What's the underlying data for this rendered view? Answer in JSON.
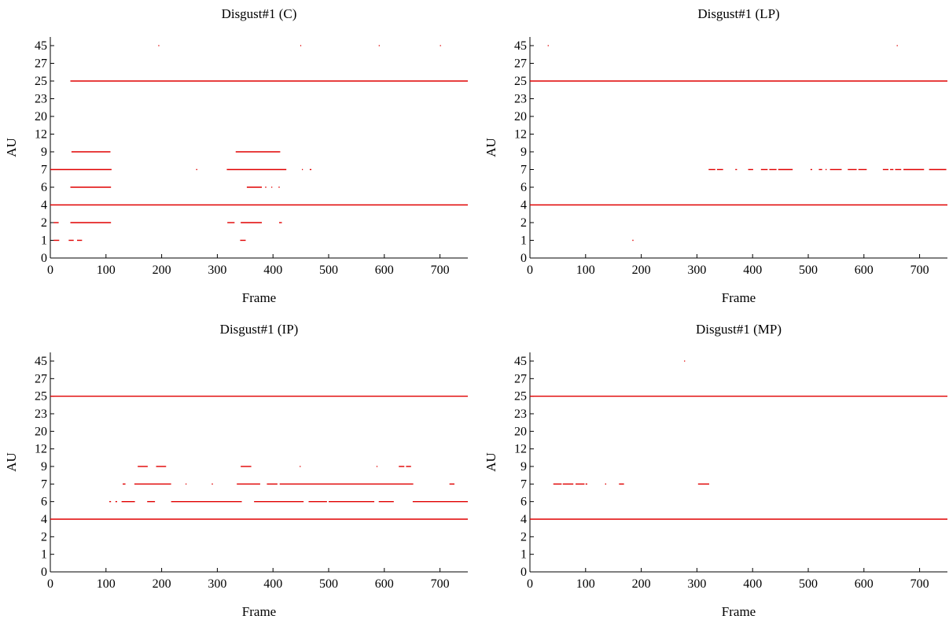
{
  "figure": {
    "color_segments": "#e00000",
    "color_axis": "#000000"
  },
  "chart_data": [
    {
      "type": "scatter",
      "title": "Disgust#1 (C)",
      "xlabel": "Frame",
      "ylabel": "AU",
      "xlim": [
        0,
        750
      ],
      "xticks": [
        0,
        100,
        200,
        300,
        400,
        500,
        600,
        700
      ],
      "au_categories": [
        "0",
        "1",
        "2",
        "4",
        "6",
        "7",
        "9",
        "12",
        "20",
        "23",
        "25",
        "27",
        "45"
      ],
      "segments": [
        {
          "au": "45",
          "x": [
            [
              194,
              195
            ],
            [
              449,
              450
            ],
            [
              590,
              591
            ],
            [
              700,
              701
            ]
          ]
        },
        {
          "au": "25",
          "x": [
            [
              36,
              750
            ]
          ]
        },
        {
          "au": "9",
          "x": [
            [
              38,
              108
            ],
            [
              333,
              413
            ]
          ]
        },
        {
          "au": "7",
          "x": [
            [
              0,
              110
            ],
            [
              262,
              264
            ],
            [
              317,
              424
            ],
            [
              452,
              453
            ],
            [
              466,
              469
            ]
          ]
        },
        {
          "au": "6",
          "x": [
            [
              36,
              109
            ],
            [
              353,
              380
            ],
            [
              386,
              388
            ],
            [
              397,
              398
            ],
            [
              410,
              412
            ]
          ]
        },
        {
          "au": "4",
          "x": [
            [
              0,
              750
            ]
          ]
        },
        {
          "au": "2",
          "x": [
            [
              6,
              15
            ],
            [
              36,
              109
            ],
            [
              318,
              331
            ],
            [
              342,
              380
            ],
            [
              411,
              416
            ]
          ]
        },
        {
          "au": "1",
          "x": [
            [
              6,
              16
            ],
            [
              33,
              42
            ],
            [
              48,
              57
            ],
            [
              341,
              351
            ]
          ]
        }
      ]
    },
    {
      "type": "scatter",
      "title": "Disgust#1 (LP)",
      "xlabel": "Frame",
      "ylabel": "AU",
      "xlim": [
        0,
        750
      ],
      "xticks": [
        0,
        100,
        200,
        300,
        400,
        500,
        600,
        700
      ],
      "au_categories": [
        "0",
        "1",
        "2",
        "4",
        "6",
        "7",
        "9",
        "12",
        "20",
        "23",
        "25",
        "27",
        "45"
      ],
      "segments": [
        {
          "au": "45",
          "x": [
            [
              32,
              33
            ],
            [
              659,
              660
            ]
          ]
        },
        {
          "au": "25",
          "x": [
            [
              0,
              750
            ]
          ]
        },
        {
          "au": "7",
          "x": [
            [
              321,
              333
            ],
            [
              336,
              347
            ],
            [
              369,
              372
            ],
            [
              392,
              401
            ],
            [
              415,
              427
            ],
            [
              430,
              443
            ],
            [
              446,
              472
            ],
            [
              504,
              507
            ],
            [
              519,
              525
            ],
            [
              531,
              533
            ],
            [
              539,
              560
            ],
            [
              571,
              587
            ],
            [
              590,
              605
            ],
            [
              634,
              644
            ],
            [
              647,
              653
            ],
            [
              656,
              667
            ],
            [
              671,
              708
            ],
            [
              717,
              748
            ]
          ]
        },
        {
          "au": "4",
          "x": [
            [
              0,
              750
            ]
          ]
        },
        {
          "au": "1",
          "x": [
            [
              184,
              186
            ]
          ]
        }
      ]
    },
    {
      "type": "scatter",
      "title": "Disgust#1 (IP)",
      "xlabel": "Frame",
      "ylabel": "AU",
      "xlim": [
        0,
        750
      ],
      "xticks": [
        0,
        100,
        200,
        300,
        400,
        500,
        600,
        700
      ],
      "au_categories": [
        "0",
        "1",
        "2",
        "4",
        "6",
        "7",
        "9",
        "12",
        "20",
        "23",
        "25",
        "27",
        "45"
      ],
      "segments": [
        {
          "au": "25",
          "x": [
            [
              0,
              750
            ]
          ]
        },
        {
          "au": "9",
          "x": [
            [
              157,
              175
            ],
            [
              190,
              208
            ],
            [
              342,
              361
            ],
            [
              448,
              449
            ],
            [
              586,
              587
            ],
            [
              626,
              636
            ],
            [
              639,
              648
            ]
          ]
        },
        {
          "au": "7",
          "x": [
            [
              130,
              135
            ],
            [
              151,
              217
            ],
            [
              243,
              244
            ],
            [
              290,
              292
            ],
            [
              335,
              377
            ],
            [
              389,
              408
            ],
            [
              412,
              652
            ],
            [
              717,
              726
            ]
          ]
        },
        {
          "au": "6",
          "x": [
            [
              106,
              109
            ],
            [
              117,
              120
            ],
            [
              128,
              152
            ],
            [
              174,
              188
            ],
            [
              217,
              344
            ],
            [
              366,
              455
            ],
            [
              464,
              497
            ],
            [
              500,
              582
            ],
            [
              590,
              617
            ],
            [
              651,
              750
            ]
          ]
        },
        {
          "au": "4",
          "x": [
            [
              0,
              750
            ]
          ]
        }
      ]
    },
    {
      "type": "scatter",
      "title": "Disgust#1 (MP)",
      "xlabel": "Frame",
      "ylabel": "AU",
      "xlim": [
        0,
        750
      ],
      "xticks": [
        0,
        100,
        200,
        300,
        400,
        500,
        600,
        700
      ],
      "au_categories": [
        "0",
        "1",
        "2",
        "4",
        "6",
        "7",
        "9",
        "12",
        "20",
        "23",
        "25",
        "27",
        "45"
      ],
      "segments": [
        {
          "au": "45",
          "x": [
            [
              277,
              278
            ]
          ]
        },
        {
          "au": "25",
          "x": [
            [
              0,
              750
            ]
          ]
        },
        {
          "au": "7",
          "x": [
            [
              42,
              57
            ],
            [
              59,
              78
            ],
            [
              82,
              98
            ],
            [
              100,
              103
            ],
            [
              135,
              137
            ],
            [
              160,
              169
            ],
            [
              302,
              322
            ]
          ]
        },
        {
          "au": "4",
          "x": [
            [
              0,
              750
            ]
          ]
        }
      ]
    }
  ]
}
